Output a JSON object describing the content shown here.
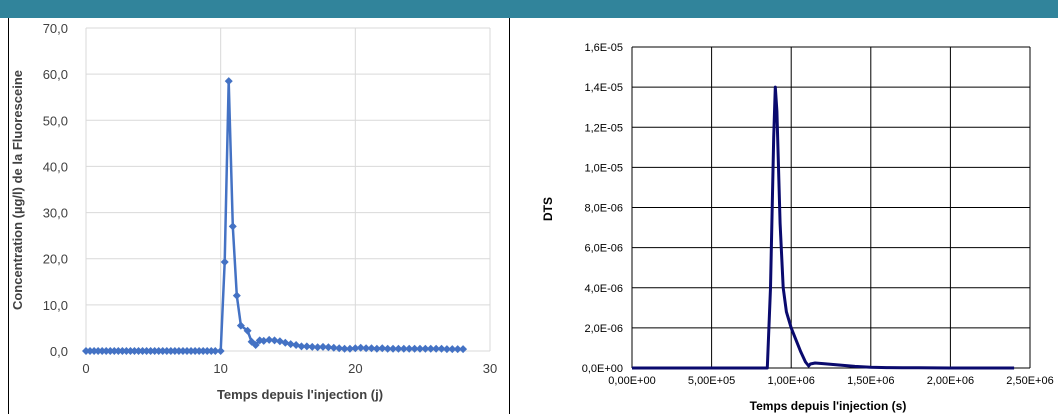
{
  "colors": {
    "top_bar": "#31849b",
    "left_series": "#4472c4",
    "right_series": "#0a0a6e",
    "grid": "#d9d9d9",
    "grid_dark": "#000000"
  },
  "chart_data": [
    {
      "type": "line",
      "marker": "diamond",
      "xlabel": "Temps depuis l'injection (j)",
      "ylabel": "Concentration (µg/l) de la Fluoresceine",
      "xlim": [
        0,
        30
      ],
      "ylim": [
        0,
        70
      ],
      "x_ticks": [
        "0",
        "10",
        "20",
        "30"
      ],
      "y_ticks": [
        "0,0",
        "10,0",
        "20,0",
        "30,0",
        "40,0",
        "50,0",
        "60,0",
        "70,0"
      ],
      "grid": true,
      "series": [
        {
          "x": [
            0,
            0.3,
            0.6,
            0.9,
            1.2,
            1.5,
            1.8,
            2.1,
            2.4,
            2.7,
            3.0,
            3.3,
            3.6,
            3.9,
            4.2,
            4.5,
            4.8,
            5.1,
            5.4,
            5.7,
            6.0,
            6.3,
            6.6,
            6.9,
            7.2,
            7.5,
            7.8,
            8.1,
            8.4,
            8.7,
            9.0,
            9.3,
            9.6,
            10.0,
            10.3,
            10.6,
            10.9,
            11.2,
            11.5,
            12.0,
            12.3,
            12.6,
            12.9,
            13.2,
            13.6,
            14.0,
            14.4,
            14.8,
            15.2,
            15.6,
            16.0,
            16.4,
            16.8,
            17.2,
            17.6,
            18.0,
            18.4,
            18.8,
            19.2,
            19.6,
            20.0,
            20.4,
            20.8,
            21.2,
            21.6,
            22.0,
            22.4,
            22.8,
            23.2,
            23.6,
            24.0,
            24.4,
            24.8,
            25.2,
            25.6,
            26.0,
            26.4,
            26.8,
            27.2,
            27.6,
            28.0
          ],
          "values": [
            0,
            0,
            0,
            0,
            0,
            0,
            0,
            0,
            0,
            0,
            0,
            0,
            0,
            0,
            0,
            0,
            0,
            0,
            0,
            0,
            0,
            0,
            0,
            0,
            0,
            0,
            0,
            0,
            0,
            0,
            0,
            0,
            0,
            0,
            19.3,
            58.5,
            27.0,
            12.0,
            5.5,
            4.4,
            2.0,
            1.3,
            2.3,
            2.2,
            2.4,
            2.3,
            2.1,
            1.8,
            1.5,
            1.3,
            1.0,
            1.0,
            0.9,
            0.8,
            0.9,
            0.8,
            0.7,
            0.6,
            0.5,
            0.5,
            0.6,
            0.7,
            0.6,
            0.6,
            0.5,
            0.6,
            0.5,
            0.5,
            0.5,
            0.5,
            0.5,
            0.5,
            0.5,
            0.5,
            0.5,
            0.5,
            0.5,
            0.4,
            0.4,
            0.4,
            0.4
          ]
        }
      ]
    },
    {
      "type": "line",
      "xlabel": "Temps depuis l'injection (s)",
      "ylabel": "DTS",
      "xlim": [
        0,
        2500000
      ],
      "ylim": [
        0,
        1.6e-05
      ],
      "x_ticks": [
        "0,00E+00",
        "5,00E+05",
        "1,00E+06",
        "1,50E+06",
        "2,00E+06",
        "2,50E+06"
      ],
      "y_ticks": [
        "0,0E+00",
        "2,0E-06",
        "4,0E-06",
        "6,0E-06",
        "8,0E-06",
        "1,0E-05",
        "1,2E-05",
        "1,4E-05",
        "1,6E-05"
      ],
      "grid": true,
      "series": [
        {
          "x": [
            0,
            100000,
            300000,
            500000,
            700000,
            850000,
            870000,
            890000,
            900000,
            910000,
            930000,
            950000,
            970000,
            1000000,
            1030000,
            1060000,
            1090000,
            1110000,
            1120000,
            1150000,
            1200000,
            1300000,
            1400000,
            1500000,
            1600000,
            1700000,
            1800000,
            2000000,
            2200000,
            2400000
          ],
          "values": [
            0,
            0,
            0,
            0,
            0,
            0,
            4e-06,
            1.15e-05,
            1.4e-05,
            1.28e-05,
            7.2e-06,
            4e-06,
            2.8e-06,
            2e-06,
            1.4e-06,
            8e-07,
            3e-07,
            1e-07,
            2e-07,
            2.5e-07,
            2.2e-07,
            1.5e-07,
            8e-08,
            4e-08,
            2e-08,
            1e-08,
            1e-08,
            0,
            0,
            0
          ]
        }
      ]
    }
  ]
}
